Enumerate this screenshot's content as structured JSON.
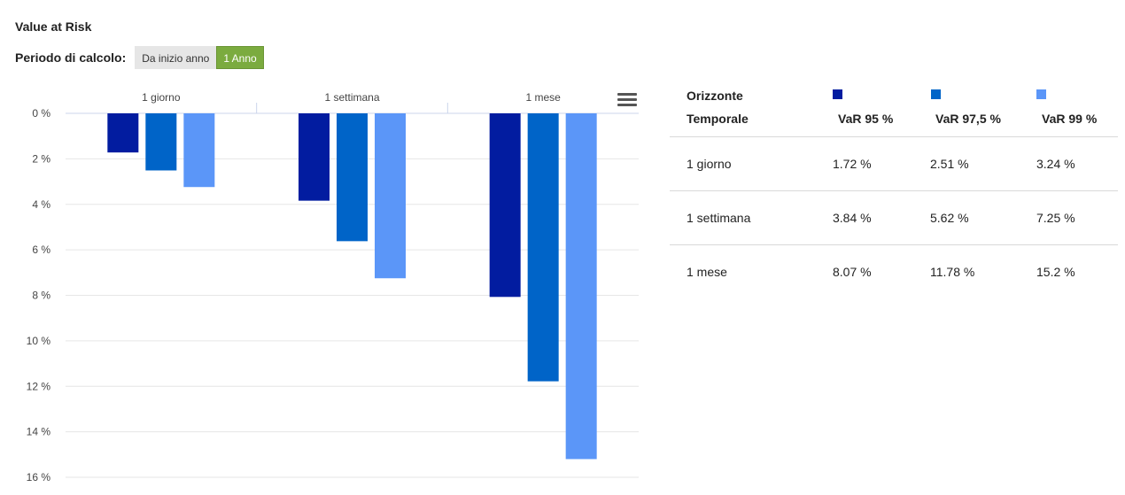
{
  "header": {
    "title": "Value at Risk"
  },
  "period": {
    "label": "Periodo di calcolo:",
    "options": [
      "Da inizio anno",
      "1 Anno"
    ],
    "selected": "1 Anno"
  },
  "colors": {
    "var95": "#021ca0",
    "var975": "#0064c8",
    "var99": "#5b96f8"
  },
  "chart_data": {
    "type": "bar",
    "categories": [
      "1 giorno",
      "1 settimana",
      "1 mese"
    ],
    "series": [
      {
        "values": [
          1.72,
          3.84,
          8.07
        ]
      },
      {
        "values": [
          2.51,
          5.62,
          11.78
        ]
      },
      {
        "values": [
          3.24,
          7.25,
          15.2
        ]
      }
    ],
    "ylim": [
      0,
      16
    ],
    "yticks": [
      "0 %",
      "2 %",
      "4 %",
      "6 %",
      "8 %",
      "10 %",
      "12 %",
      "14 %",
      "16 %"
    ],
    "y_reversed": true,
    "grid": true,
    "xaxis_position": "top"
  },
  "table": {
    "header": {
      "col1_line1": "Orizzonte",
      "col1_line2": "Temporale",
      "c95": "VaR 95 %",
      "c975": "VaR 97,5 %",
      "c99": "VaR 99 %"
    },
    "rows": [
      {
        "label": "1 giorno",
        "v95": "1.72 %",
        "v975": "2.51 %",
        "v99": "3.24 %"
      },
      {
        "label": "1 settimana",
        "v95": "3.84 %",
        "v975": "5.62 %",
        "v99": "7.25 %"
      },
      {
        "label": "1 mese",
        "v95": "8.07 %",
        "v975": "11.78 %",
        "v99": "15.2 %"
      }
    ]
  }
}
